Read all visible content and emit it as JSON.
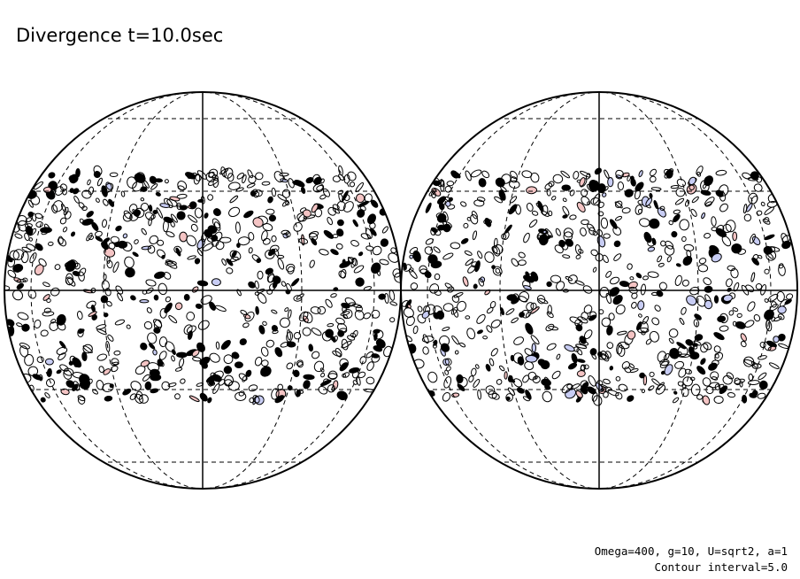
{
  "header": {
    "title": "Divergence t=10.0sec"
  },
  "footer": {
    "parameters": "Omega=400, g=10, U=sqrt2, a=1",
    "contour_interval": "Contour interval=5.0"
  }
}
